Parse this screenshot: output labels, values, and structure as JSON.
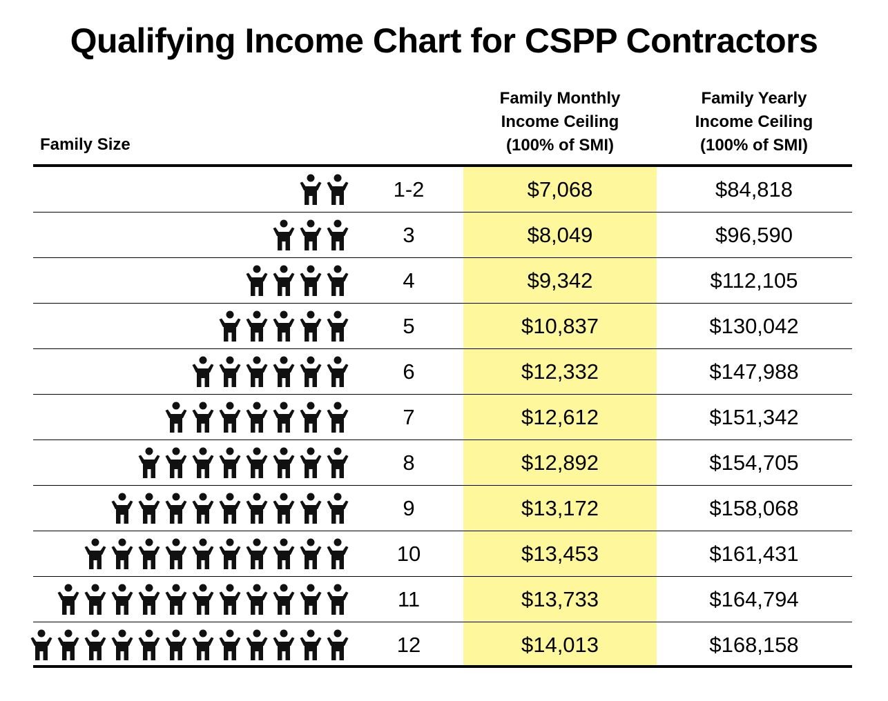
{
  "title": "Qualifying Income Chart for CSPP Contractors",
  "headers": {
    "family_size": "Family Size",
    "monthly": [
      "Family Monthly",
      "Income Ceiling",
      "(100% of SMI)"
    ],
    "yearly": [
      "Family Yearly",
      "Income Ceiling",
      "(100% of SMI)"
    ]
  },
  "colors": {
    "highlight": "#fff79b",
    "icon": "#111111",
    "rule": "#000000"
  },
  "icon_name": "person-arms-raised-icon",
  "chart_data": {
    "type": "table",
    "title": "Qualifying Income Chart for CSPP Contractors",
    "columns": [
      "Family Size",
      "Family Monthly Income Ceiling (100% of SMI)",
      "Family Yearly Income Ceiling (100% of SMI)"
    ],
    "rows": [
      {
        "size": "1-2",
        "icons": 2,
        "monthly": "$7,068",
        "yearly": "$84,818"
      },
      {
        "size": "3",
        "icons": 3,
        "monthly": "$8,049",
        "yearly": "$96,590"
      },
      {
        "size": "4",
        "icons": 4,
        "monthly": "$9,342",
        "yearly": "$112,105"
      },
      {
        "size": "5",
        "icons": 5,
        "monthly": "$10,837",
        "yearly": "$130,042"
      },
      {
        "size": "6",
        "icons": 6,
        "monthly": "$12,332",
        "yearly": "$147,988"
      },
      {
        "size": "7",
        "icons": 7,
        "monthly": "$12,612",
        "yearly": "$151,342"
      },
      {
        "size": "8",
        "icons": 8,
        "monthly": "$12,892",
        "yearly": "$154,705"
      },
      {
        "size": "9",
        "icons": 9,
        "monthly": "$13,172",
        "yearly": "$158,068"
      },
      {
        "size": "10",
        "icons": 10,
        "monthly": "$13,453",
        "yearly": "$161,431"
      },
      {
        "size": "11",
        "icons": 11,
        "monthly": "$13,733",
        "yearly": "$164,794"
      },
      {
        "size": "12",
        "icons": 12,
        "monthly": "$14,013",
        "yearly": "$168,158"
      }
    ]
  }
}
